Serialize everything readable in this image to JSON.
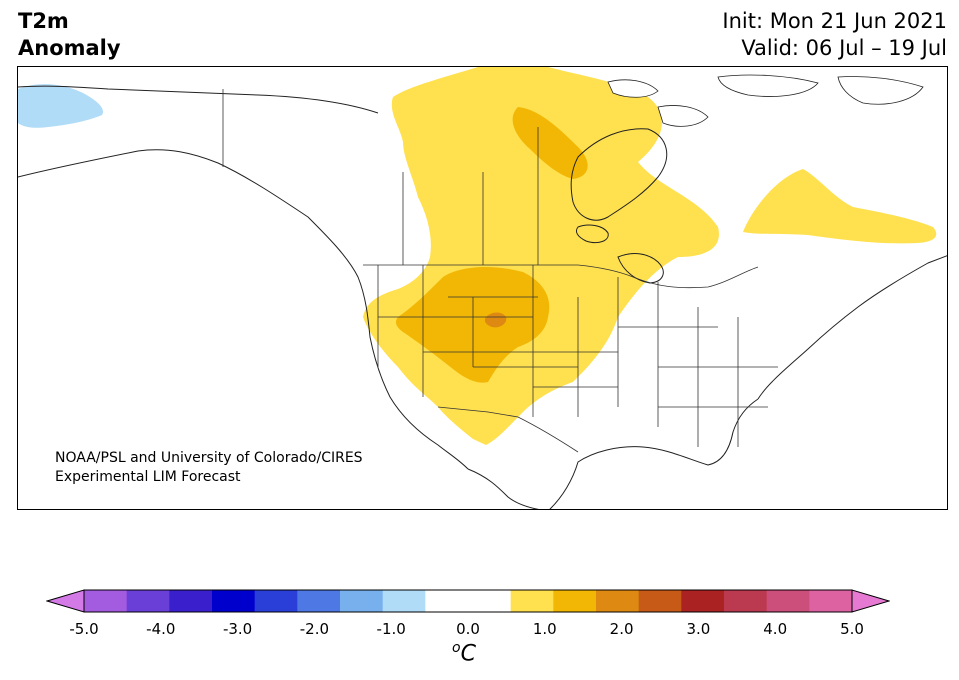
{
  "header": {
    "left_line1": "T2m",
    "left_line2": "Anomaly",
    "init": "Init: Mon 21 Jun 2021",
    "valid": "Valid: 06 Jul – 19 Jul"
  },
  "credit": {
    "line1": "NOAA/PSL and University of Colorado/CIRES",
    "line2": "Experimental LIM Forecast"
  },
  "colorbar": {
    "colors": [
      "#d37ae6",
      "#a35be0",
      "#6a3fd8",
      "#3a1fcc",
      "#0000cc",
      "#2a3fd8",
      "#4e78e4",
      "#78b0ee",
      "#b0dcf8",
      "#ffffff",
      "#ffffff",
      "#ffe04e",
      "#f2b705",
      "#de8a12",
      "#c85a18",
      "#aa2222",
      "#bb3a50",
      "#cc4e7a",
      "#dc62a2",
      "#e67ad2"
    ],
    "ticks": [
      "-5.0",
      "-4.0",
      "-3.0",
      "-2.0",
      "-1.0",
      "0.0",
      "1.0",
      "2.0",
      "3.0",
      "4.0",
      "5.0"
    ],
    "unit": "C"
  },
  "legend_colors": {
    "light_yellow": "#ffe04e",
    "yellow_orange": "#f2b705",
    "orange": "#de8a12",
    "light_blue": "#b0dcf8"
  }
}
